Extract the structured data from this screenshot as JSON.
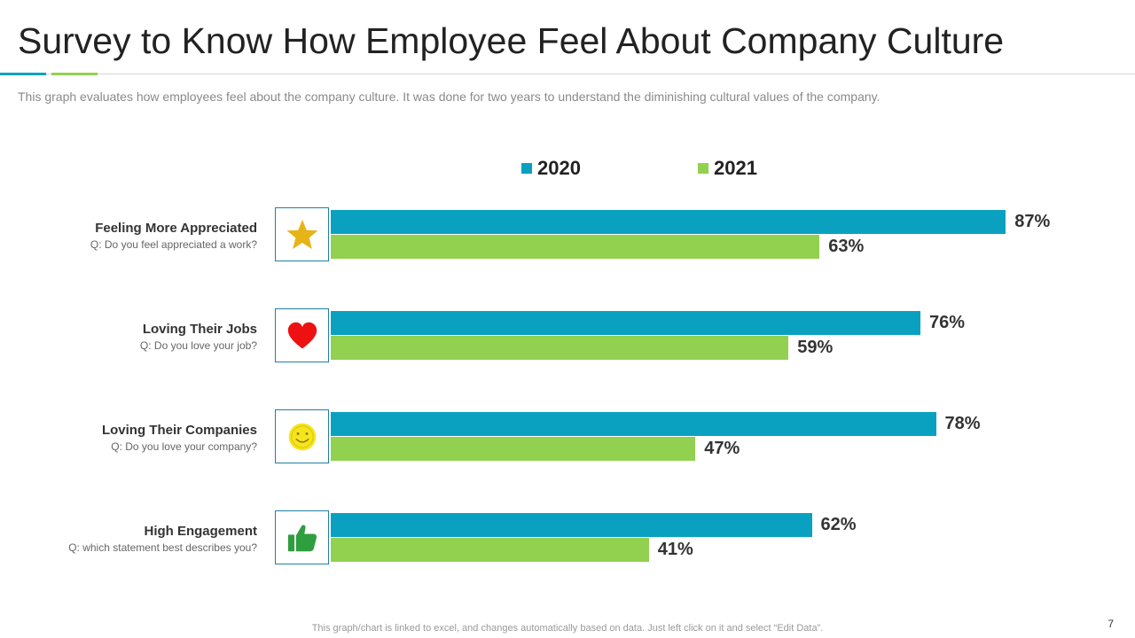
{
  "slide": {
    "title": "Survey to Know How Employee Feel About Company Culture",
    "subtitle": "This graph evaluates how employees feel about the company culture. It was done for two years to understand the diminishing cultural values of the company.",
    "footnote": "This graph/chart is linked to excel, and changes automatically based on data. Just left click on it and select “Edit Data”.",
    "page_number": "7"
  },
  "colors": {
    "series_2020": "#0aa1c1",
    "series_2021": "#92d050",
    "accent_blue": "#0aa1c1",
    "accent_green": "#92d050"
  },
  "chart_data": {
    "type": "bar",
    "orientation": "horizontal",
    "title": "",
    "xlabel": "",
    "ylabel": "",
    "xlim": [
      0,
      100
    ],
    "legend_position": "top",
    "categories": [
      {
        "title": "Feeling More Appreciated",
        "question": "Q: Do you feel appreciated a work?",
        "icon": "star-icon"
      },
      {
        "title": "Loving Their Jobs",
        "question": "Q: Do you love your job?",
        "icon": "heart-icon"
      },
      {
        "title": "Loving Their Companies",
        "question": "Q: Do you love your company?",
        "icon": "smiley-icon"
      },
      {
        "title": "High Engagement",
        "question": "Q: which statement best describes you?",
        "icon": "thumbs-up-icon"
      }
    ],
    "series": [
      {
        "name": "2020",
        "values": [
          87,
          76,
          78,
          62
        ],
        "labels": [
          "87%",
          "76%",
          "78%",
          "62%"
        ]
      },
      {
        "name": "2021",
        "values": [
          63,
          59,
          47,
          41
        ],
        "labels": [
          "63%",
          "59%",
          "47%",
          "41%"
        ]
      }
    ]
  }
}
